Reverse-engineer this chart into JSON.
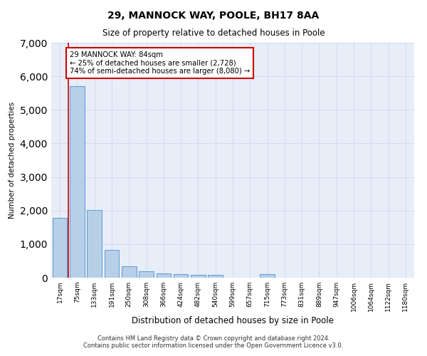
{
  "title1": "29, MANNOCK WAY, POOLE, BH17 8AA",
  "title2": "Size of property relative to detached houses in Poole",
  "xlabel": "Distribution of detached houses by size in Poole",
  "ylabel": "Number of detached properties",
  "bar_labels": [
    "17sqm",
    "75sqm",
    "133sqm",
    "191sqm",
    "250sqm",
    "308sqm",
    "366sqm",
    "424sqm",
    "482sqm",
    "540sqm",
    "599sqm",
    "657sqm",
    "715sqm",
    "773sqm",
    "831sqm",
    "889sqm",
    "947sqm",
    "1006sqm",
    "1064sqm",
    "1122sqm",
    "1180sqm"
  ],
  "bar_values": [
    1780,
    5700,
    2020,
    820,
    340,
    185,
    120,
    100,
    95,
    80,
    0,
    0,
    100,
    0,
    0,
    0,
    0,
    0,
    0,
    0,
    0
  ],
  "bar_color": "#b8cfe8",
  "bar_edge_color": "#5b9bd5",
  "vline_x": 0.5,
  "vline_color": "#cc0000",
  "annotation_text": "29 MANNOCK WAY: 84sqm\n← 25% of detached houses are smaller (2,728)\n74% of semi-detached houses are larger (8,080) →",
  "ylim": [
    0,
    7000
  ],
  "yticks": [
    0,
    1000,
    2000,
    3000,
    4000,
    5000,
    6000,
    7000
  ],
  "grid_color": "#d0d8e8",
  "bg_color": "#e8eef8",
  "footer1": "Contains HM Land Registry data © Crown copyright and database right 2024.",
  "footer2": "Contains public sector information licensed under the Open Government Licence v3.0."
}
